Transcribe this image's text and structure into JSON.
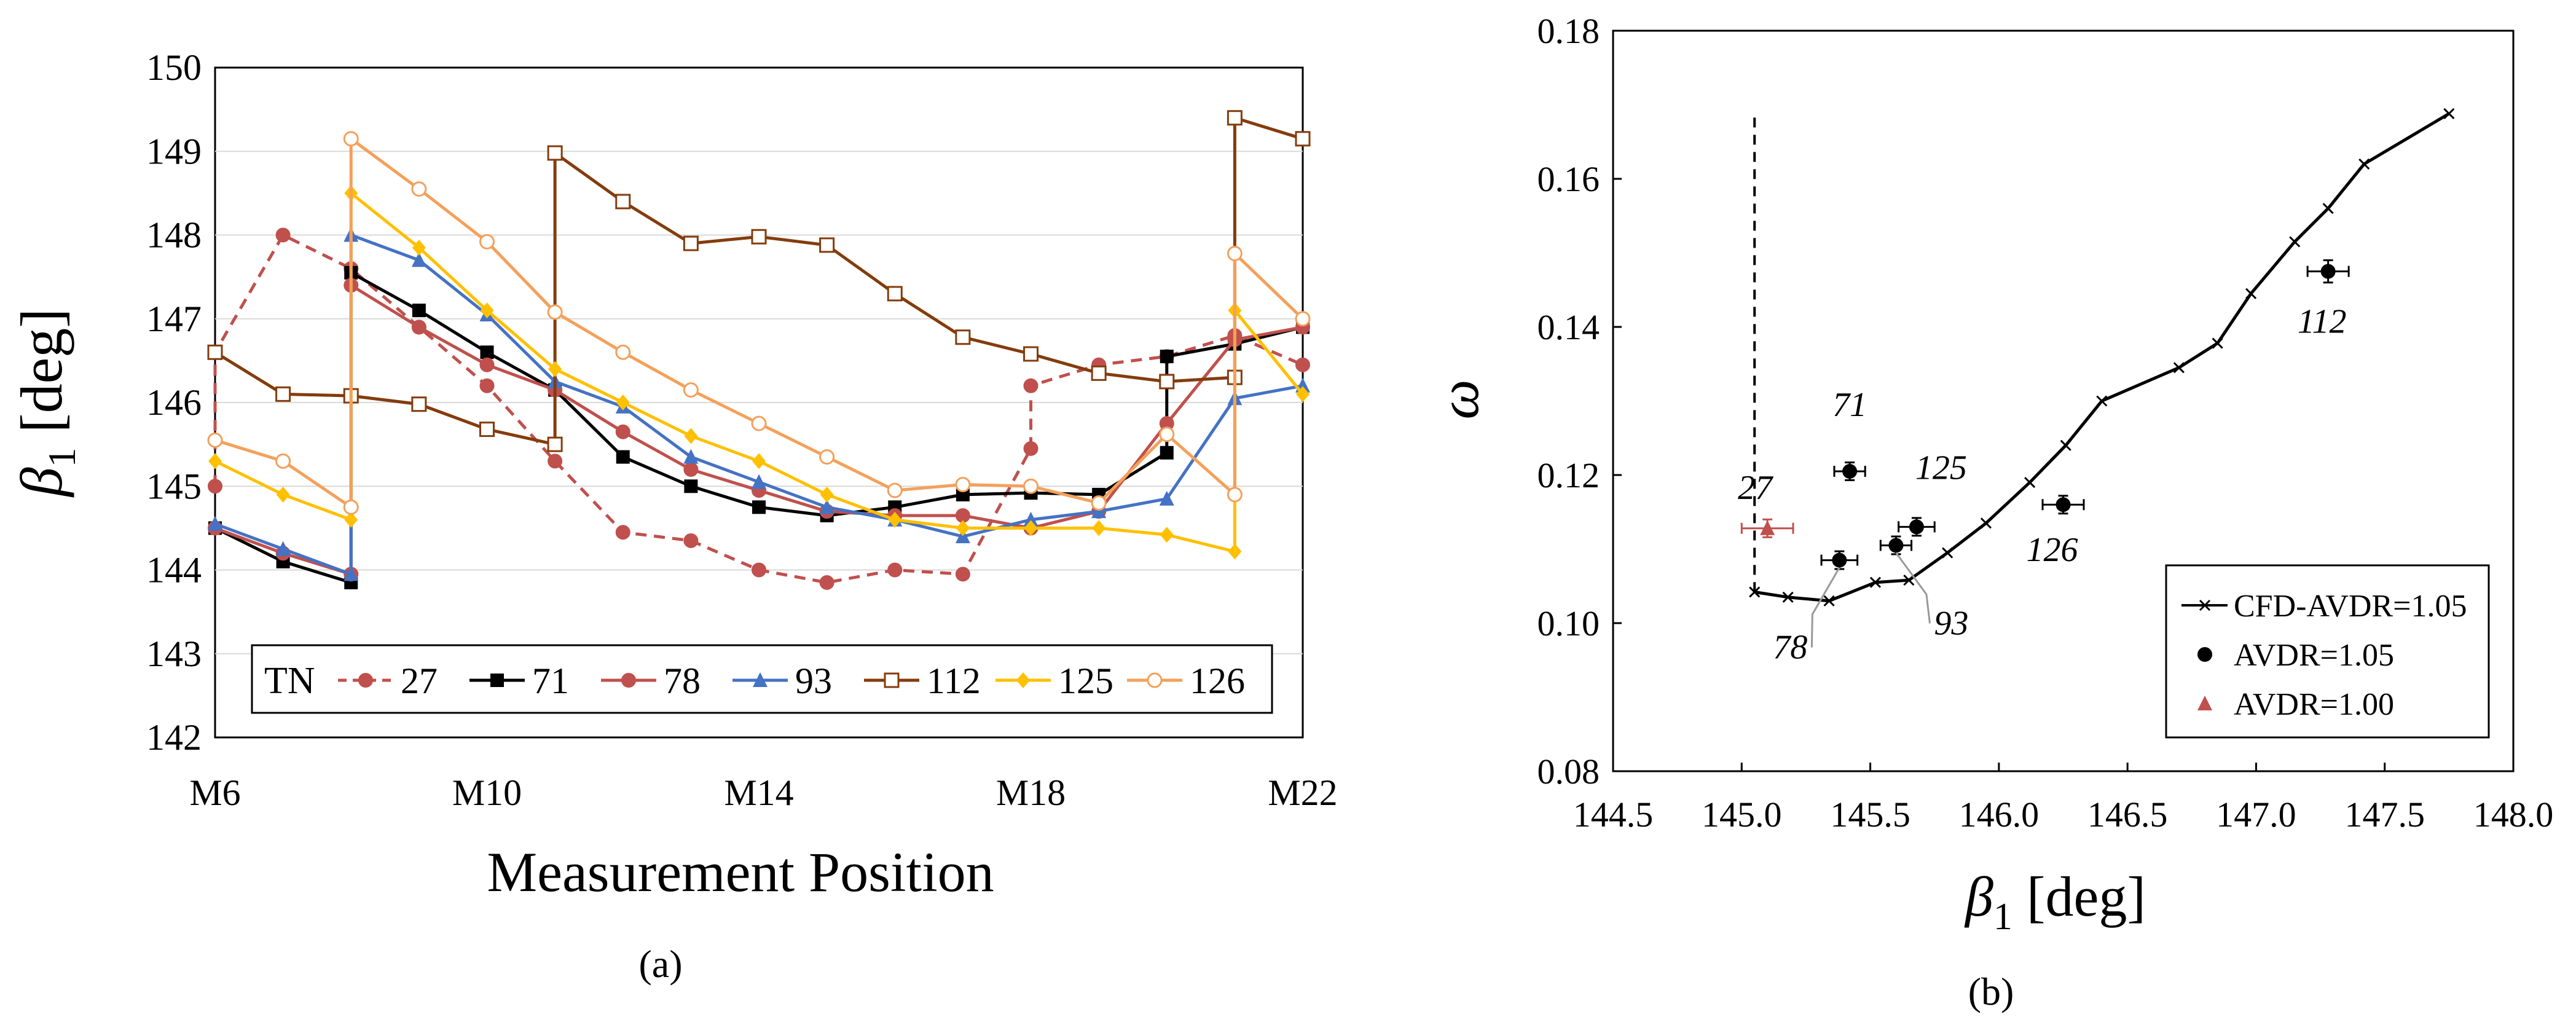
{
  "panel_labels": {
    "a": "(a)",
    "b": "(b)"
  },
  "colors": {
    "s27": "#C0504D",
    "s71": "#000000",
    "s78": "#C0504D",
    "s93": "#4472C4",
    "s112": "#843C0C",
    "s125": "#FFC000",
    "s126": "#F4A05A",
    "cfd": "#000000",
    "avdr105": "#000000",
    "avdr100": "#C0504D"
  },
  "chart_data": [
    {
      "type": "line",
      "ylabel_symbol": "β",
      "ylabel_sub": "1",
      "ylabel_unit": " [deg]",
      "xlabel": "Measurement Position",
      "ylim": [
        142,
        150
      ],
      "yticks": [
        "142",
        "143",
        "144",
        "145",
        "146",
        "147",
        "148",
        "149",
        "150"
      ],
      "xlim": [
        6,
        22
      ],
      "xticks": [
        {
          "x": 6,
          "label": "M6"
        },
        {
          "x": 10,
          "label": "M10"
        },
        {
          "x": 14,
          "label": "M14"
        },
        {
          "x": 18,
          "label": "M18"
        },
        {
          "x": 22,
          "label": "M22"
        }
      ],
      "legend": {
        "title": "TN",
        "placement": "bottom"
      },
      "series": [
        {
          "name": "27",
          "color_key": "s27",
          "marker": "circle-filled",
          "dash": true,
          "points": [
            [
              6,
              145.0
            ],
            [
              6,
              146.6
            ],
            [
              7,
              148.0
            ],
            [
              8,
              147.6
            ],
            [
              9,
              146.9
            ],
            [
              10,
              146.2
            ],
            [
              11,
              145.3
            ],
            [
              12,
              144.45
            ],
            [
              13,
              144.35
            ],
            [
              14,
              144.0
            ],
            [
              15,
              143.85
            ],
            [
              16,
              144.0
            ],
            [
              17,
              143.95
            ],
            [
              18,
              145.45
            ],
            [
              18,
              146.2
            ],
            [
              19,
              146.45
            ],
            [
              20,
              146.55
            ],
            [
              21,
              146.8
            ],
            [
              22,
              146.45
            ]
          ]
        },
        {
          "name": "71",
          "color_key": "s71",
          "marker": "square-filled",
          "dash": false,
          "points": [
            [
              6,
              144.5
            ],
            [
              7,
              144.1
            ],
            [
              8,
              143.85
            ],
            [
              8,
              147.55
            ],
            [
              9,
              147.1
            ],
            [
              10,
              146.6
            ],
            [
              11,
              146.15
            ],
            [
              12,
              145.35
            ],
            [
              13,
              145.0
            ],
            [
              14,
              144.75
            ],
            [
              15,
              144.65
            ],
            [
              16,
              144.75
            ],
            [
              17,
              144.9
            ],
            [
              18,
              144.92
            ],
            [
              19,
              144.9
            ],
            [
              20,
              145.4
            ],
            [
              20,
              146.55
            ],
            [
              21,
              146.7
            ],
            [
              22,
              146.9
            ]
          ]
        },
        {
          "name": "78",
          "color_key": "s78",
          "marker": "circle-filled",
          "dash": false,
          "points": [
            [
              6,
              144.5
            ],
            [
              7,
              144.2
            ],
            [
              8,
              143.95
            ],
            [
              8,
              147.4
            ],
            [
              9,
              146.9
            ],
            [
              10,
              146.45
            ],
            [
              11,
              146.15
            ],
            [
              12,
              145.65
            ],
            [
              13,
              145.2
            ],
            [
              14,
              144.95
            ],
            [
              15,
              144.7
            ],
            [
              16,
              144.65
            ],
            [
              17,
              144.65
            ],
            [
              18,
              144.5
            ],
            [
              19,
              144.7
            ],
            [
              20,
              145.75
            ],
            [
              21,
              146.75
            ],
            [
              22,
              146.9
            ]
          ]
        },
        {
          "name": "93",
          "color_key": "s93",
          "marker": "triangle-filled",
          "dash": false,
          "points": [
            [
              6,
              144.55
            ],
            [
              7,
              144.25
            ],
            [
              8,
              143.95
            ],
            [
              8,
              148.0
            ],
            [
              9,
              147.7
            ],
            [
              10,
              147.05
            ],
            [
              11,
              146.25
            ],
            [
              12,
              145.95
            ],
            [
              13,
              145.35
            ],
            [
              14,
              145.05
            ],
            [
              15,
              144.75
            ],
            [
              16,
              144.6
            ],
            [
              17,
              144.4
            ],
            [
              18,
              144.6
            ],
            [
              19,
              144.7
            ],
            [
              20,
              144.85
            ],
            [
              21,
              146.05
            ],
            [
              22,
              146.2
            ]
          ]
        },
        {
          "name": "112",
          "color_key": "s112",
          "marker": "square-open",
          "dash": false,
          "points": [
            [
              6,
              146.6
            ],
            [
              7,
              146.1
            ],
            [
              8,
              146.08
            ],
            [
              9,
              145.98
            ],
            [
              10,
              145.68
            ],
            [
              11,
              145.5
            ],
            [
              11,
              148.98
            ],
            [
              12,
              148.4
            ],
            [
              13,
              147.9
            ],
            [
              14,
              147.98
            ],
            [
              15,
              147.88
            ],
            [
              16,
              147.3
            ],
            [
              17,
              146.78
            ],
            [
              18,
              146.58
            ],
            [
              19,
              146.35
            ],
            [
              20,
              146.25
            ],
            [
              21,
              146.3
            ],
            [
              21,
              149.4
            ],
            [
              22,
              149.15
            ]
          ]
        },
        {
          "name": "125",
          "color_key": "s125",
          "marker": "diamond-filled",
          "dash": false,
          "points": [
            [
              6,
              145.3
            ],
            [
              7,
              144.9
            ],
            [
              8,
              144.6
            ],
            [
              8,
              148.5
            ],
            [
              9,
              147.85
            ],
            [
              10,
              147.1
            ],
            [
              11,
              146.4
            ],
            [
              12,
              146.0
            ],
            [
              13,
              145.6
            ],
            [
              14,
              145.3
            ],
            [
              15,
              144.9
            ],
            [
              16,
              144.6
            ],
            [
              17,
              144.5
            ],
            [
              18,
              144.5
            ],
            [
              19,
              144.5
            ],
            [
              20,
              144.42
            ],
            [
              21,
              144.22
            ],
            [
              21,
              147.1
            ],
            [
              22,
              146.1
            ]
          ]
        },
        {
          "name": "126",
          "color_key": "s126",
          "marker": "circle-open",
          "dash": false,
          "points": [
            [
              6,
              145.55
            ],
            [
              7,
              145.3
            ],
            [
              8,
              144.75
            ],
            [
              8,
              149.15
            ],
            [
              9,
              148.55
            ],
            [
              10,
              147.92
            ],
            [
              11,
              147.08
            ],
            [
              12,
              146.6
            ],
            [
              13,
              146.15
            ],
            [
              14,
              145.75
            ],
            [
              15,
              145.35
            ],
            [
              16,
              144.95
            ],
            [
              17,
              145.02
            ],
            [
              18,
              145.0
            ],
            [
              19,
              144.8
            ],
            [
              20,
              145.62
            ],
            [
              21,
              144.9
            ],
            [
              21,
              147.78
            ],
            [
              22,
              147.0
            ]
          ]
        }
      ]
    },
    {
      "type": "scatter",
      "xlabel_symbol": "β",
      "xlabel_sub": "1",
      "xlabel_unit": " [deg]",
      "ylabel": "ω",
      "xlim": [
        144.5,
        148.0
      ],
      "ylim": [
        0.08,
        0.18
      ],
      "xticks": [
        "144.5",
        "145.0",
        "145.5",
        "146.0",
        "146.5",
        "147.0",
        "147.5",
        "148.0"
      ],
      "yticks": [
        "0.08",
        "0.10",
        "0.12",
        "0.14",
        "0.16",
        "0.18"
      ],
      "legend": {
        "placement": "bottom-right",
        "entries": [
          {
            "label": "CFD-AVDR=1.05",
            "key": "cfd"
          },
          {
            "label": "AVDR=1.05",
            "key": "avdr105"
          },
          {
            "label": "AVDR=1.00",
            "key": "avdr100"
          }
        ]
      },
      "cfd_line": {
        "name": "CFD-AVDR=1.05",
        "points": [
          [
            145.05,
            0.1042
          ],
          [
            145.18,
            0.1035
          ],
          [
            145.34,
            0.103
          ],
          [
            145.52,
            0.1055
          ],
          [
            145.65,
            0.1058
          ],
          [
            145.8,
            0.1095
          ],
          [
            145.95,
            0.1135
          ],
          [
            146.12,
            0.119
          ],
          [
            146.26,
            0.124
          ],
          [
            146.4,
            0.13
          ],
          [
            146.7,
            0.1345
          ],
          [
            146.85,
            0.1378
          ],
          [
            146.98,
            0.1445
          ],
          [
            147.15,
            0.1515
          ],
          [
            147.28,
            0.156
          ],
          [
            147.42,
            0.162
          ],
          [
            147.75,
            0.1688
          ]
        ]
      },
      "vertical_dashed_line": {
        "x": 145.05,
        "y_range": [
          0.1042,
          0.169
        ]
      },
      "avdr105_points": [
        {
          "label": "71",
          "x": 145.42,
          "y": 0.1205,
          "xerr": 0.06,
          "yerr": 0.0012
        },
        {
          "label": "78",
          "x": 145.38,
          "y": 0.1085,
          "xerr": 0.07,
          "yerr": 0.0012
        },
        {
          "label": "93",
          "x": 145.6,
          "y": 0.1105,
          "xerr": 0.06,
          "yerr": 0.0012
        },
        {
          "label": "125",
          "x": 145.68,
          "y": 0.113,
          "xerr": 0.07,
          "yerr": 0.0012
        },
        {
          "label": "126",
          "x": 146.25,
          "y": 0.116,
          "xerr": 0.08,
          "yerr": 0.0012
        },
        {
          "label": "112",
          "x": 147.28,
          "y": 0.1475,
          "xerr": 0.08,
          "yerr": 0.0015
        }
      ],
      "avdr100_points": [
        {
          "label": "27",
          "x": 145.1,
          "y": 0.1128,
          "xerr": 0.1,
          "yerr": 0.0012
        }
      ]
    }
  ]
}
